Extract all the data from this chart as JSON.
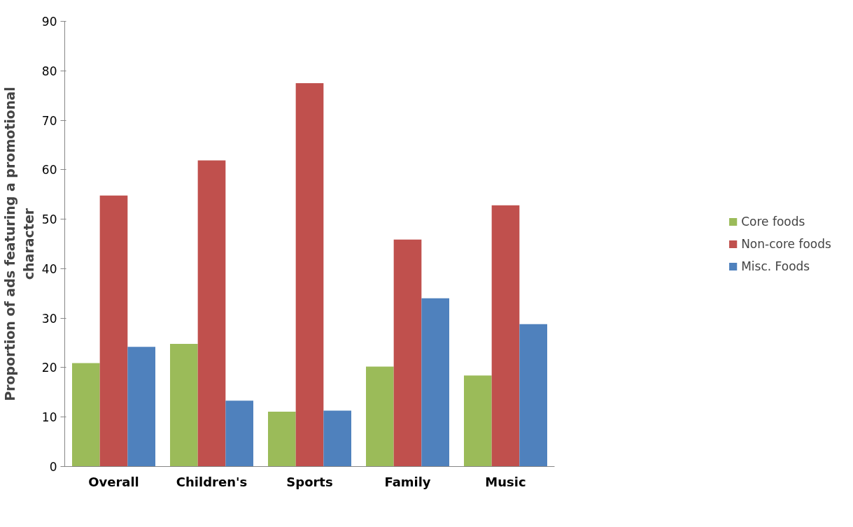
{
  "chart_data": {
    "type": "bar",
    "categories": [
      "Overall",
      "Children's",
      "Sports",
      "Family",
      "Music"
    ],
    "ylabel": "Proportion of ads featuring a promotional\ncharacter",
    "ylim": [
      0,
      90
    ],
    "yticks": [
      0,
      10,
      20,
      30,
      40,
      50,
      60,
      70,
      80,
      90
    ],
    "grid": false,
    "legend": "right",
    "series": [
      {
        "name": "Core foods",
        "color": "#9bbb59",
        "values": [
          20.9,
          24.8,
          11.1,
          20.2,
          18.4
        ]
      },
      {
        "name": "Non-core foods",
        "color": "#c0504d",
        "values": [
          54.8,
          61.9,
          77.5,
          45.9,
          52.8
        ]
      },
      {
        "name": "Misc. Foods",
        "color": "#4f81bd",
        "values": [
          24.2,
          13.3,
          11.3,
          34.0,
          28.8
        ]
      }
    ]
  }
}
